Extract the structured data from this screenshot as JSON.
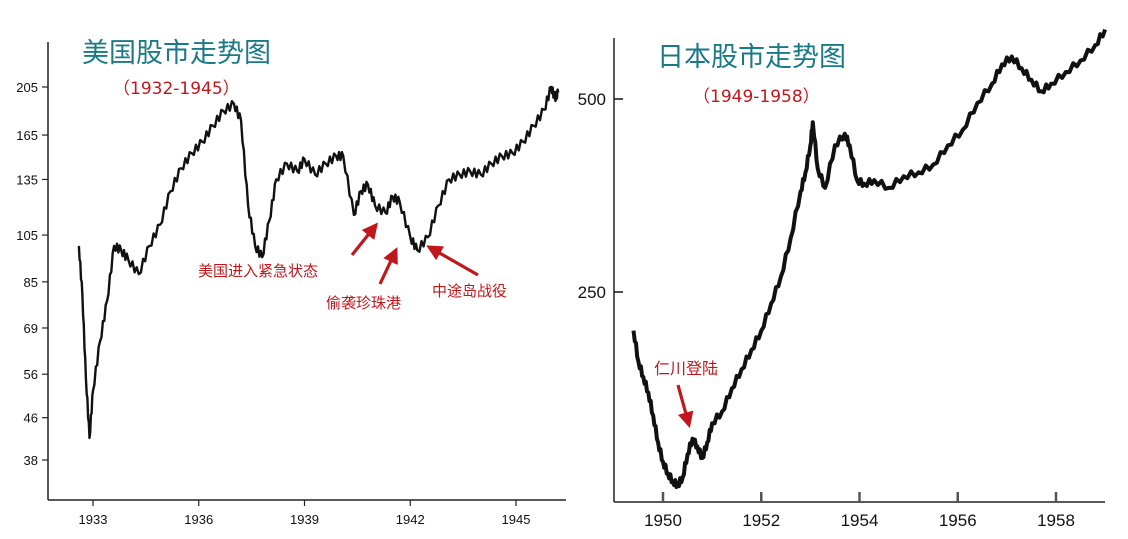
{
  "chart_data": [
    {
      "type": "line",
      "title": "美国股市走势图",
      "subtitle": "（1932-1945）",
      "xlabel": "",
      "ylabel": "",
      "x_ticks": [
        1933,
        1936,
        1939,
        1942,
        1945
      ],
      "y_ticks": [
        38,
        46,
        56,
        69,
        85,
        105,
        135,
        165,
        205
      ],
      "y_scale": "log",
      "xlim": [
        1932.55,
        1946.4
      ],
      "grid": false,
      "color": "#111111",
      "x": [
        1932.6,
        1932.7,
        1932.8,
        1932.9,
        1933.0,
        1933.2,
        1933.4,
        1933.6,
        1933.8,
        1934.0,
        1934.3,
        1934.6,
        1934.9,
        1935.2,
        1935.5,
        1935.8,
        1936.1,
        1936.4,
        1936.7,
        1937.0,
        1937.2,
        1937.4,
        1937.6,
        1937.8,
        1938.0,
        1938.2,
        1938.5,
        1938.8,
        1939.0,
        1939.3,
        1939.6,
        1939.9,
        1940.1,
        1940.4,
        1940.6,
        1940.8,
        1941.0,
        1941.3,
        1941.5,
        1941.7,
        1942.0,
        1942.2,
        1942.5,
        1942.8,
        1943.1,
        1943.4,
        1943.7,
        1944.0,
        1944.3,
        1944.6,
        1944.9,
        1945.2,
        1945.5,
        1945.8,
        1946.0,
        1946.1,
        1946.2
      ],
      "values": [
        100,
        80,
        55,
        42,
        52,
        65,
        78,
        100,
        98,
        94,
        88,
        100,
        110,
        128,
        142,
        152,
        160,
        172,
        184,
        190,
        176,
        120,
        100,
        95,
        112,
        135,
        145,
        140,
        148,
        138,
        145,
        150,
        150,
        115,
        128,
        132,
        120,
        116,
        125,
        122,
        104,
        98,
        104,
        120,
        135,
        138,
        140,
        138,
        145,
        150,
        152,
        160,
        172,
        185,
        205,
        195,
        200
      ],
      "annotations": [
        {
          "text": "美国进入紧急状态",
          "x": 1941.0,
          "y": 112
        },
        {
          "text": "偷袭珍珠港",
          "x": 1941.9,
          "y": 100
        },
        {
          "text": "中途岛战役",
          "x": 1942.4,
          "y": 100
        }
      ]
    },
    {
      "type": "line",
      "title": "日本股市走势图",
      "subtitle": "（1949-1958）",
      "xlabel": "",
      "ylabel": "",
      "x_ticks": [
        1950,
        1952,
        1954,
        1956,
        1958
      ],
      "y_ticks": [
        250,
        500
      ],
      "xlim": [
        1949.12,
        1959.05
      ],
      "ylim": [
        -20,
        605
      ],
      "grid": false,
      "color": "#111111",
      "x": [
        1949.4,
        1949.5,
        1949.6,
        1949.7,
        1949.8,
        1949.9,
        1950.0,
        1950.1,
        1950.2,
        1950.3,
        1950.4,
        1950.5,
        1950.6,
        1950.7,
        1950.8,
        1950.9,
        1951.0,
        1951.2,
        1951.4,
        1951.6,
        1951.8,
        1952.0,
        1952.2,
        1952.4,
        1952.6,
        1952.8,
        1952.9,
        1953.0,
        1953.05,
        1953.15,
        1953.3,
        1953.5,
        1953.7,
        1953.8,
        1953.95,
        1954.1,
        1954.3,
        1954.6,
        1954.9,
        1955.2,
        1955.5,
        1955.8,
        1956.1,
        1956.4,
        1956.7,
        1956.9,
        1957.1,
        1957.3,
        1957.5,
        1957.7,
        1957.9,
        1958.2,
        1958.5,
        1958.8,
        1959.0
      ],
      "values": [
        200,
        160,
        140,
        120,
        90,
        55,
        30,
        15,
        5,
        0,
        10,
        40,
        60,
        50,
        35,
        55,
        80,
        95,
        125,
        150,
        175,
        200,
        235,
        270,
        320,
        380,
        405,
        440,
        470,
        410,
        385,
        440,
        455,
        440,
        395,
        390,
        395,
        385,
        400,
        405,
        415,
        440,
        460,
        495,
        520,
        545,
        555,
        540,
        525,
        510,
        520,
        535,
        550,
        570,
        590
      ],
      "annotations": [
        {
          "text": "仁川登陆",
          "x": 1950.5,
          "y": 40
        }
      ]
    }
  ]
}
